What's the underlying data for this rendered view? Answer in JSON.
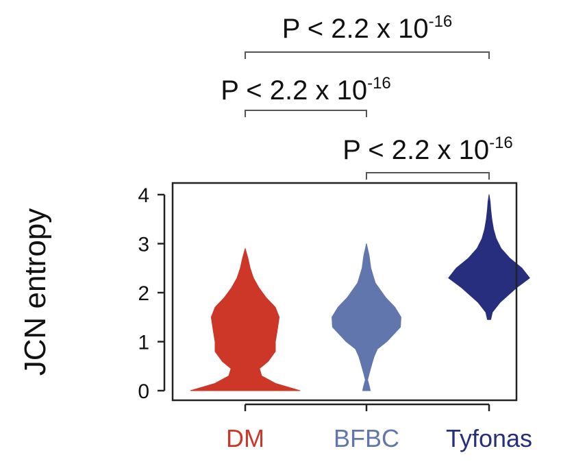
{
  "chart_data": {
    "type": "violin",
    "ylabel": "JCN entropy",
    "ylim": [
      0,
      4
    ],
    "yticks": [
      "0",
      "1",
      "2",
      "3",
      "4"
    ],
    "grid": false,
    "categories": [
      "DM",
      "BFBC",
      "Tyfonas"
    ],
    "colors": {
      "DM": "#cc3728",
      "BFBC": "#6176ad",
      "Tyfonas": "#272e7e"
    },
    "series": [
      {
        "name": "DM",
        "min": 0.0,
        "max": 2.9,
        "density": [
          [
            0.0,
            1.0
          ],
          [
            0.15,
            0.55
          ],
          [
            0.3,
            0.3
          ],
          [
            0.45,
            0.26
          ],
          [
            0.6,
            0.42
          ],
          [
            0.8,
            0.55
          ],
          [
            1.0,
            0.55
          ],
          [
            1.2,
            0.58
          ],
          [
            1.5,
            0.62
          ],
          [
            1.7,
            0.55
          ],
          [
            1.9,
            0.38
          ],
          [
            2.1,
            0.25
          ],
          [
            2.3,
            0.15
          ],
          [
            2.5,
            0.09
          ],
          [
            2.7,
            0.05
          ],
          [
            2.9,
            0.0
          ]
        ]
      },
      {
        "name": "BFBC",
        "min": 0.0,
        "max": 3.0,
        "density": [
          [
            0.0,
            0.07
          ],
          [
            0.1,
            0.05
          ],
          [
            0.22,
            0.02
          ],
          [
            0.35,
            0.05
          ],
          [
            0.55,
            0.1
          ],
          [
            0.7,
            0.14
          ],
          [
            0.85,
            0.2
          ],
          [
            1.0,
            0.37
          ],
          [
            1.3,
            0.62
          ],
          [
            1.5,
            0.63
          ],
          [
            1.7,
            0.52
          ],
          [
            1.9,
            0.35
          ],
          [
            2.2,
            0.16
          ],
          [
            2.5,
            0.08
          ],
          [
            2.75,
            0.05
          ],
          [
            3.0,
            0.0
          ]
        ]
      },
      {
        "name": "Tyfonas",
        "min": 1.45,
        "max": 4.0,
        "density": [
          [
            1.45,
            0.03
          ],
          [
            1.6,
            0.06
          ],
          [
            1.8,
            0.2
          ],
          [
            2.1,
            0.5
          ],
          [
            2.3,
            0.74
          ],
          [
            2.5,
            0.6
          ],
          [
            2.7,
            0.38
          ],
          [
            2.9,
            0.22
          ],
          [
            3.1,
            0.13
          ],
          [
            3.3,
            0.08
          ],
          [
            3.5,
            0.05
          ],
          [
            3.7,
            0.03
          ],
          [
            3.85,
            0.02
          ],
          [
            4.0,
            0.0
          ]
        ]
      }
    ],
    "comparisons": [
      {
        "group1": "DM",
        "group2": "Tyfonas",
        "text": "P < 2.2 x 10",
        "exponent": "-16"
      },
      {
        "group1": "DM",
        "group2": "BFBC",
        "text": "P < 2.2 x 10",
        "exponent": "-16"
      },
      {
        "group1": "BFBC",
        "group2": "Tyfonas",
        "text": "P < 2.2 x 10",
        "exponent": "-16"
      }
    ]
  }
}
